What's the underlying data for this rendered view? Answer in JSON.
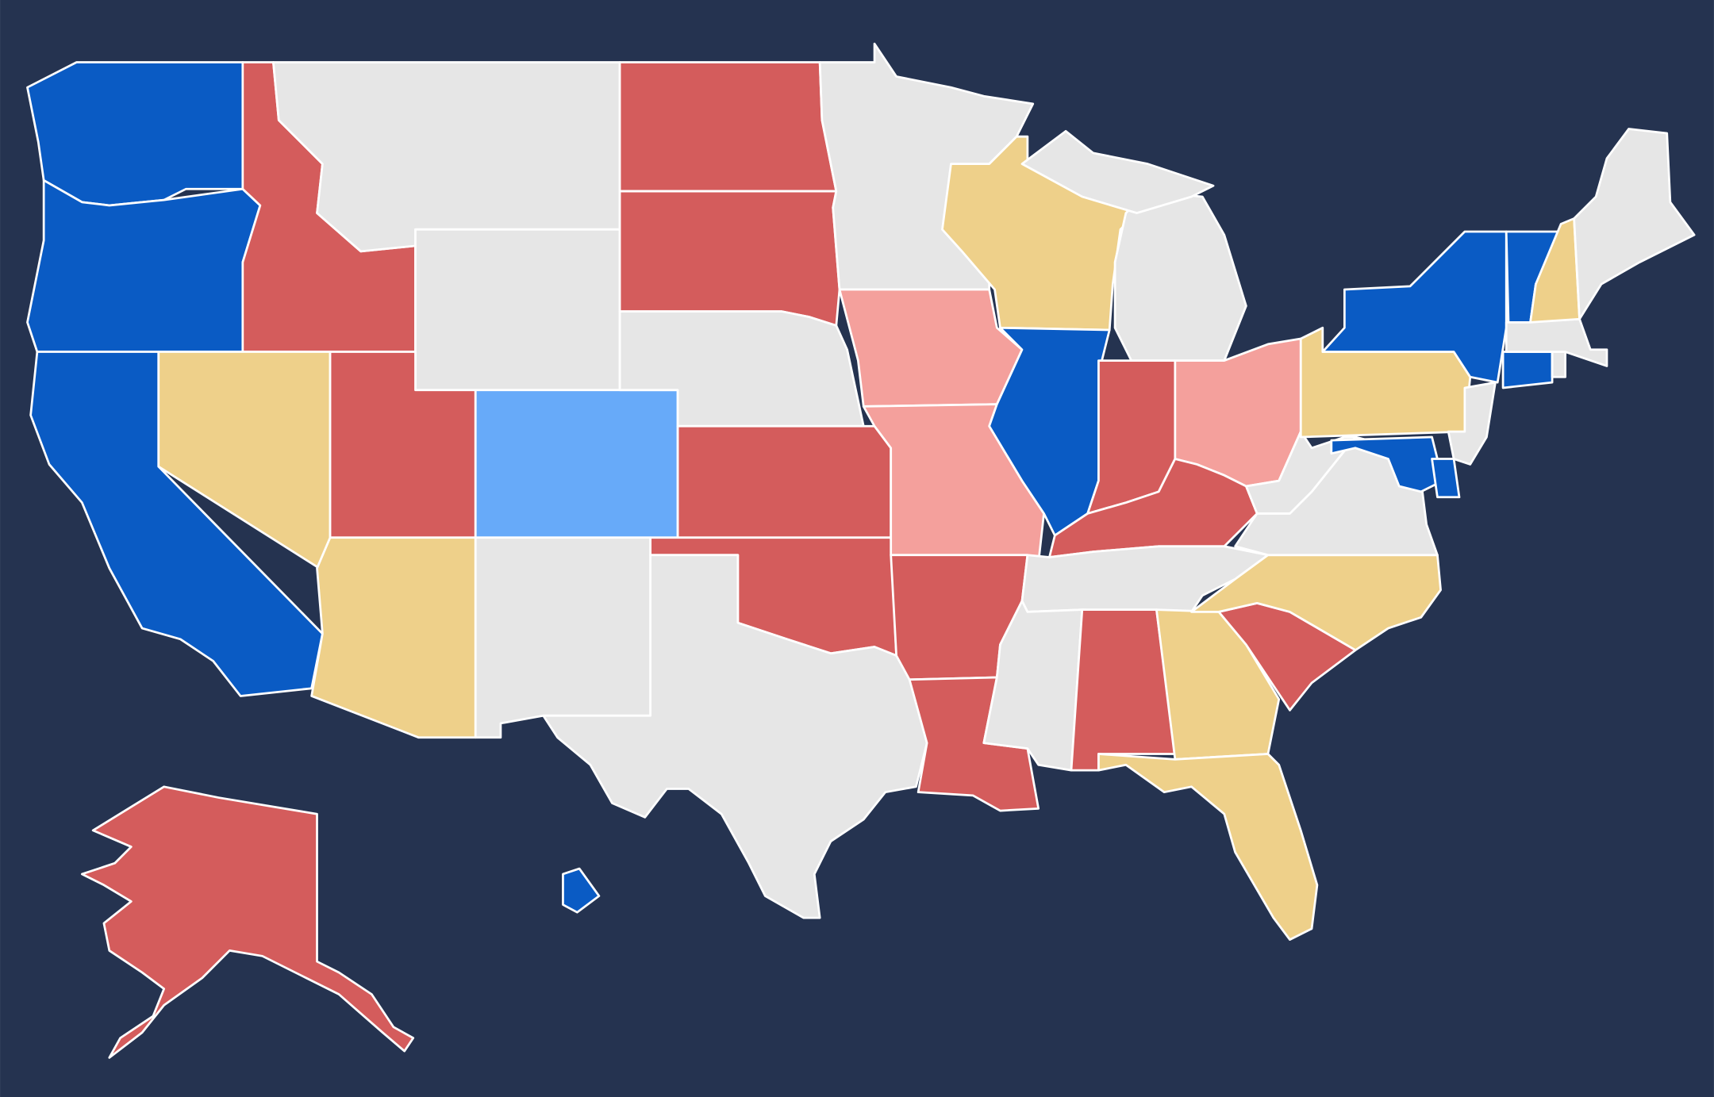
{
  "map": {
    "background": "#253350",
    "border": "#ffffff",
    "regions": [
      {
        "color": "#0a5bc4"
      },
      {
        "color": "#0a5bc4"
      },
      {
        "color": "#0a5bc4"
      },
      {
        "color": "#d45c5c"
      },
      {
        "color": "#eed08a"
      },
      {
        "color": "#e6e6e6"
      },
      {
        "color": "#e6e6e6"
      },
      {
        "color": "#d45c5c"
      },
      {
        "color": "#67aaf9"
      },
      {
        "color": "#eed08a"
      },
      {
        "color": "#e6e6e6"
      },
      {
        "color": "#d45c5c"
      },
      {
        "color": "#d45c5c"
      },
      {
        "color": "#e6e6e6"
      },
      {
        "color": "#d45c5c"
      },
      {
        "color": "#d45c5c"
      },
      {
        "color": "#e6e6e6"
      },
      {
        "color": "#e6e6e6"
      },
      {
        "color": "#f4a09c"
      },
      {
        "color": "#f4a09c"
      },
      {
        "color": "#d45c5c"
      },
      {
        "color": "#d45c5c"
      },
      {
        "color": "#eed08a"
      },
      {
        "color": "#0a5bc4"
      },
      {
        "color": "#e6e6e6"
      },
      {
        "color": "#e6e6e6"
      },
      {
        "color": "#d45c5c"
      },
      {
        "color": "#f4a09c"
      },
      {
        "color": "#d45c5c"
      },
      {
        "color": "#e6e6e6"
      },
      {
        "color": "#e6e6e6"
      },
      {
        "color": "#d45c5c"
      },
      {
        "color": "#eed08a"
      },
      {
        "color": "#eed08a"
      },
      {
        "color": "#d45c5c"
      },
      {
        "color": "#eed08a"
      },
      {
        "color": "#e6e6e6"
      },
      {
        "color": "#e6e6e6"
      },
      {
        "color": "#eed08a"
      },
      {
        "color": "#0a5bc4"
      },
      {
        "color": "#0a5bc4"
      },
      {
        "color": "#e6e6e6"
      },
      {
        "color": "#0a5bc4"
      },
      {
        "color": "#0a5bc4"
      },
      {
        "color": "#e6e6e6"
      },
      {
        "color": "#e6e6e6"
      },
      {
        "color": "#0a5bc4"
      },
      {
        "color": "#eed08a"
      },
      {
        "color": "#e6e6e6"
      },
      {
        "color": "#d45c5c"
      },
      {
        "color": "#0a5bc4"
      }
    ]
  }
}
